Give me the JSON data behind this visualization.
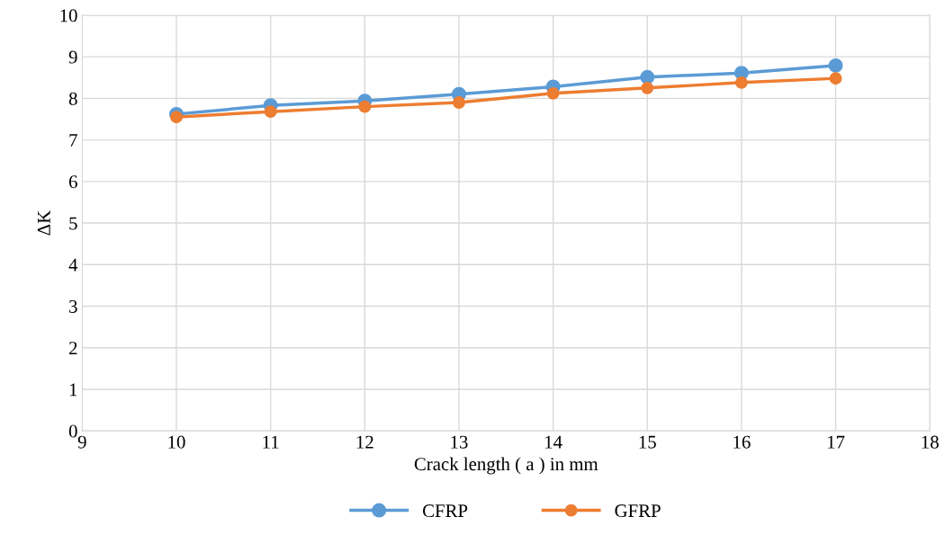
{
  "chart_data": {
    "type": "line",
    "xlabel": "Crack length ( a ) in mm",
    "ylabel": "ΔK",
    "x": [
      10,
      11,
      12,
      13,
      14,
      15,
      16,
      17
    ],
    "series": [
      {
        "name": "CFRP",
        "color": "#5b9bd5",
        "values": [
          7.62,
          7.83,
          7.94,
          8.1,
          8.28,
          8.51,
          8.61,
          8.79
        ]
      },
      {
        "name": "GFRP",
        "color": "#ed7d31",
        "values": [
          7.55,
          7.68,
          7.8,
          7.9,
          8.12,
          8.25,
          8.38,
          8.48
        ]
      }
    ],
    "xlim": [
      9,
      18
    ],
    "xticks": [
      9,
      10,
      11,
      12,
      13,
      14,
      15,
      16,
      17,
      18
    ],
    "ylim": [
      0,
      10
    ],
    "yticks": [
      0,
      1,
      2,
      3,
      4,
      5,
      6,
      7,
      8,
      9,
      10
    ],
    "grid": true,
    "legend": "bottom",
    "marker": "circle",
    "line_style": "solid"
  }
}
